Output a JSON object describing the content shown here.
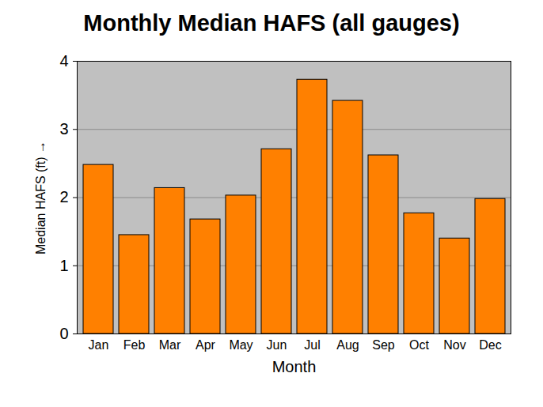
{
  "chart_data": {
    "type": "bar",
    "title": "Monthly Median HAFS (all gauges)",
    "x_label": "Month",
    "y_label": "Median HAFS (ft)",
    "categories": [
      "Jan",
      "Feb",
      "Mar",
      "Apr",
      "May",
      "Jun",
      "Jul",
      "Aug",
      "Sep",
      "Oct",
      "Nov",
      "Dec"
    ],
    "values": [
      2.48,
      1.45,
      2.14,
      1.68,
      2.03,
      2.71,
      3.73,
      3.42,
      2.62,
      1.77,
      1.4,
      1.98
    ],
    "color": "#ff8000",
    "ylim": [
      0,
      4
    ],
    "yticks": [
      0,
      1,
      2,
      3,
      4
    ],
    "grid": true
  }
}
